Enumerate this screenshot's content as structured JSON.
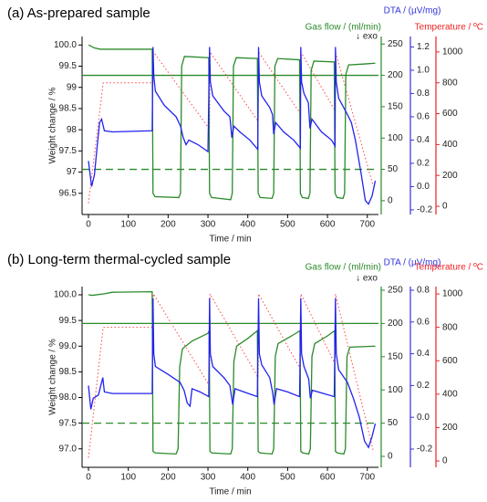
{
  "chart_data": [
    {
      "type": "line",
      "title": "(a) As-prepared sample",
      "xlabel": "Time / min",
      "xlim": [
        -16,
        728
      ],
      "xticks": [
        0,
        100,
        200,
        300,
        400,
        500,
        600,
        700
      ],
      "ylabel": "Weight change / %",
      "ylim": [
        96.0,
        100.2
      ],
      "yticks": [
        96.5,
        97.0,
        97.5,
        98.0,
        98.5,
        99.0,
        99.5,
        {
          "value": 100.0,
          "label": "100.0"
        }
      ],
      "y2label": "Gas flow / (ml/min)",
      "y2lim": [
        -22,
        262
      ],
      "y2ticks": [
        0,
        50,
        100,
        150,
        200,
        250
      ],
      "y2color": "#2a8a2a",
      "y3label": "DTA / (µV/mg)",
      "y3lim": [
        -0.24,
        1.29
      ],
      "y3ticks": [
        -0.2,
        {
          "value": 0.0,
          "label": "0.0"
        },
        0.2,
        0.4,
        0.6,
        0.8,
        {
          "value": 1.0,
          "label": "1.0"
        },
        1.2
      ],
      "y3color": "#3333dd",
      "y4label": "Temperature / ºC",
      "y4lim": [
        -53,
        1100
      ],
      "y4ticks": [
        0,
        200,
        400,
        600,
        800,
        1000
      ],
      "y4color": "#ee2222",
      "annotation": "↓ exo",
      "series": [
        {
          "color": "#2a8a2a",
          "axis": "y2",
          "style": "solid",
          "x": [
            -16,
            728
          ],
          "values": [
            200,
            200
          ]
        },
        {
          "color": "#2a8a2a",
          "axis": "y2",
          "style": "dashed",
          "x": [
            -16,
            728
          ],
          "values": [
            50,
            50
          ]
        },
        {
          "color": "#ff4444",
          "axis": "y4",
          "style": "dotted",
          "x": [
            0,
            37,
            162,
            163,
            304,
            305,
            426,
            427,
            532,
            533,
            619,
            620,
            715
          ],
          "values": [
            20,
            800,
            800,
            1000,
            500,
            1000,
            550,
            1000,
            600,
            1000,
            620,
            1000,
            130
          ]
        },
        {
          "color": "#2a8a2a",
          "axis": "y",
          "style": "solid",
          "x": [
            0,
            5,
            15,
            30,
            160,
            162,
            167,
            227,
            231,
            234,
            241,
            302,
            304,
            309,
            357,
            361,
            364,
            371,
            424,
            426,
            431,
            461,
            465,
            468,
            475,
            530,
            532,
            537,
            552,
            556,
            559,
            566,
            617,
            619,
            624,
            639,
            643,
            646,
            653,
            690,
            720
          ],
          "values": [
            100.0,
            99.98,
            99.93,
            99.9,
            99.9,
            96.5,
            96.42,
            96.4,
            96.5,
            99.5,
            99.73,
            99.7,
            96.5,
            96.4,
            96.35,
            96.5,
            99.5,
            99.7,
            99.68,
            96.5,
            96.4,
            96.38,
            96.5,
            99.5,
            99.68,
            99.65,
            96.5,
            96.4,
            96.38,
            96.5,
            99.4,
            99.62,
            99.6,
            96.5,
            96.4,
            96.38,
            96.5,
            99.3,
            99.53,
            99.55,
            99.57
          ]
        },
        {
          "color": "#2222ee",
          "axis": "y3",
          "style": "solid",
          "x": [
            0,
            8,
            15,
            22,
            28,
            33,
            40,
            60,
            160,
            162,
            164,
            168,
            190,
            220,
            231,
            238,
            245,
            252,
            275,
            300,
            304,
            306,
            312,
            340,
            355,
            360,
            365,
            380,
            405,
            425,
            427,
            429,
            435,
            455,
            462,
            465,
            470,
            490,
            515,
            532,
            533,
            535,
            541,
            552,
            556,
            561,
            585,
            610,
            619,
            620,
            622,
            628,
            650,
            660,
            670,
            685,
            695,
            703,
            712,
            720
          ],
          "values": [
            0.22,
            0.0,
            0.1,
            0.35,
            0.55,
            0.58,
            0.48,
            0.47,
            0.48,
            1.2,
            0.95,
            0.82,
            0.7,
            0.6,
            0.52,
            0.42,
            0.36,
            0.4,
            0.36,
            0.3,
            1.2,
            0.9,
            0.78,
            0.65,
            0.6,
            0.42,
            0.52,
            0.47,
            0.4,
            0.32,
            1.2,
            0.9,
            0.78,
            0.68,
            0.62,
            0.45,
            0.55,
            0.47,
            0.4,
            0.33,
            1.2,
            0.9,
            0.8,
            0.72,
            0.5,
            0.58,
            0.47,
            0.4,
            0.35,
            1.2,
            0.9,
            0.76,
            0.62,
            0.55,
            0.4,
            0.1,
            -0.12,
            -0.15,
            -0.08,
            0.05
          ]
        }
      ]
    },
    {
      "type": "line",
      "title": "(b) Long-term thermal-cycled sample",
      "xlabel": "Time / min",
      "xlim": [
        -16,
        728
      ],
      "xticks": [
        0,
        100,
        200,
        300,
        400,
        500,
        600,
        700
      ],
      "ylabel": "Weight change / %",
      "ylim": [
        96.64,
        100.16
      ],
      "yticks": [
        {
          "value": 97.0,
          "label": "97.0"
        },
        97.5,
        {
          "value": 98.0,
          "label": "98.0"
        },
        98.5,
        {
          "value": 99.0,
          "label": "99.0"
        },
        99.5,
        {
          "value": 100.0,
          "label": "100.0"
        }
      ],
      "y2label": "Gas flow / (ml/min)",
      "y2lim": [
        -16.5,
        255.5
      ],
      "y2ticks": [
        0,
        50,
        100,
        150,
        200,
        250
      ],
      "y2color": "#2a8a2a",
      "y3label": "DTA / (µV/mg)",
      "y3lim": [
        -0.315,
        0.823
      ],
      "y3ticks": [
        -0.2,
        {
          "value": 0.0,
          "label": "0.0"
        },
        0.2,
        0.4,
        0.6,
        0.8
      ],
      "y3color": "#3333dd",
      "y4label": "Temperature / ºC",
      "y4lim": [
        -38,
        1044
      ],
      "y4ticks": [
        0,
        200,
        400,
        600,
        800,
        1000
      ],
      "y4color": "#ee2222",
      "annotation": "↓ exo",
      "series": [
        {
          "color": "#2a8a2a",
          "axis": "y2",
          "style": "solid",
          "x": [
            -16,
            728
          ],
          "values": [
            200,
            200
          ]
        },
        {
          "color": "#2a8a2a",
          "axis": "y2",
          "style": "dashed",
          "x": [
            -16,
            728
          ],
          "values": [
            50,
            50
          ]
        },
        {
          "color": "#ff4444",
          "axis": "y4",
          "style": "dotted",
          "x": [
            0,
            37,
            162,
            163,
            304,
            305,
            426,
            427,
            532,
            533,
            619,
            620,
            715
          ],
          "values": [
            20,
            800,
            800,
            1000,
            450,
            1000,
            500,
            1000,
            550,
            1000,
            580,
            1000,
            60
          ]
        },
        {
          "color": "#2a8a2a",
          "axis": "y",
          "style": "solid",
          "x": [
            0,
            10,
            40,
            60,
            160,
            162,
            168,
            220,
            225,
            229,
            236,
            260,
            300,
            303,
            305,
            310,
            357,
            361,
            365,
            372,
            400,
            424,
            426,
            431,
            461,
            465,
            469,
            476,
            510,
            531,
            533,
            538,
            553,
            557,
            561,
            568,
            600,
            618,
            620,
            625,
            641,
            645,
            649,
            656,
            720
          ],
          "values": [
            100.0,
            99.99,
            100.02,
            100.05,
            100.06,
            96.95,
            96.92,
            96.9,
            97.0,
            98.6,
            98.95,
            99.1,
            99.25,
            99.3,
            96.95,
            96.92,
            96.9,
            97.0,
            98.7,
            99.0,
            99.15,
            99.3,
            96.95,
            96.92,
            96.9,
            97.0,
            98.8,
            99.05,
            99.2,
            99.3,
            96.95,
            96.92,
            96.9,
            97.0,
            98.8,
            99.05,
            99.2,
            99.3,
            96.95,
            96.92,
            96.9,
            97.0,
            98.8,
            98.98,
            99.0
          ]
        },
        {
          "color": "#2222ee",
          "axis": "y3",
          "style": "solid",
          "x": [
            0,
            6,
            12,
            25,
            36,
            40,
            60,
            160,
            162,
            164,
            168,
            200,
            230,
            240,
            248,
            255,
            260,
            280,
            302,
            304,
            306,
            312,
            340,
            355,
            362,
            368,
            390,
            424,
            427,
            429,
            435,
            455,
            462,
            466,
            472,
            500,
            530,
            533,
            535,
            541,
            553,
            557,
            562,
            590,
            617,
            620,
            622,
            628,
            650,
            665,
            680,
            693,
            703,
            712,
            720
          ],
          "values": [
            0.2,
            0.05,
            0.12,
            0.14,
            0.25,
            0.16,
            0.15,
            0.15,
            0.75,
            0.4,
            0.32,
            0.27,
            0.22,
            0.17,
            0.09,
            0.07,
            0.18,
            0.16,
            0.13,
            0.75,
            0.4,
            0.32,
            0.25,
            0.2,
            0.08,
            0.18,
            0.16,
            0.13,
            0.75,
            0.4,
            0.33,
            0.25,
            0.16,
            0.08,
            0.18,
            0.16,
            0.13,
            0.75,
            0.4,
            0.32,
            0.24,
            0.12,
            0.17,
            0.15,
            0.13,
            0.75,
            0.4,
            0.3,
            0.22,
            0.12,
            0.0,
            -0.15,
            -0.19,
            -0.12,
            -0.04
          ]
        }
      ]
    }
  ]
}
